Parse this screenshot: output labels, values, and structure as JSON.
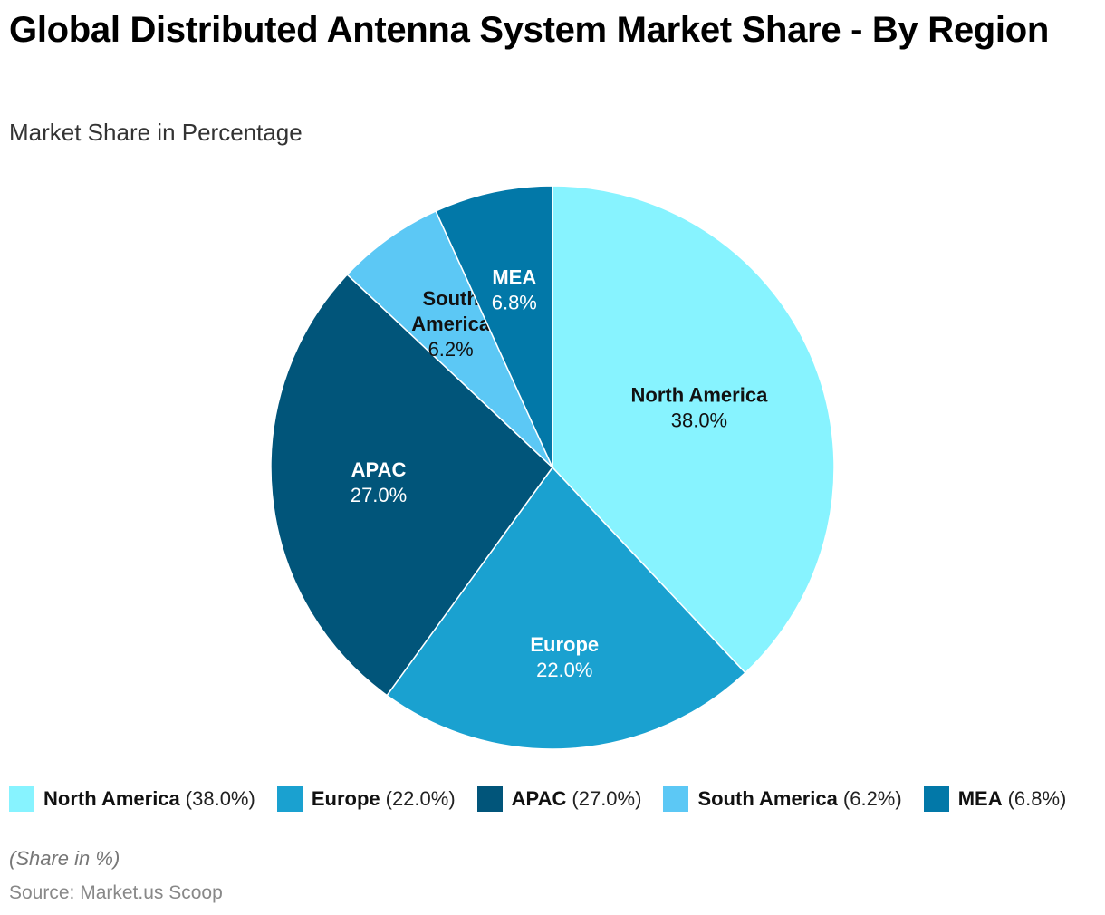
{
  "header": {
    "title": "Global Distributed Antenna System Market Share - By Region",
    "subtitle": "Market Share in Percentage"
  },
  "chart_data": {
    "type": "pie",
    "title": "Global Distributed Antenna System Market Share - By Region",
    "subtitle": "Market Share in Percentage",
    "categories": [
      "North America",
      "Europe",
      "APAC",
      "South America",
      "MEA"
    ],
    "values": [
      38.0,
      22.0,
      27.0,
      6.2,
      6.8
    ],
    "value_labels": [
      "38.0%",
      "22.0%",
      "27.0%",
      "6.2%",
      "6.8%"
    ],
    "colors": [
      "#87F3FF",
      "#1AA1D0",
      "#01557A",
      "#5CC8F5",
      "#0278A8"
    ],
    "label_text_colors": [
      "#111111",
      "#ffffff",
      "#ffffff",
      "#111111",
      "#ffffff"
    ],
    "start": "top, clockwise",
    "legend_position": "bottom"
  },
  "legend": {
    "items": [
      {
        "name": "North America",
        "pct": "(38.0%)",
        "color": "#87F3FF"
      },
      {
        "name": "Europe",
        "pct": "(22.0%)",
        "color": "#1AA1D0"
      },
      {
        "name": "APAC",
        "pct": "(27.0%)",
        "color": "#01557A"
      },
      {
        "name": "South America",
        "pct": "(6.2%)",
        "color": "#5CC8F5"
      },
      {
        "name": "MEA",
        "pct": "(6.8%)",
        "color": "#0278A8"
      }
    ]
  },
  "footer": {
    "note": "(Share in %)",
    "source": "Source: Market.us Scoop"
  }
}
